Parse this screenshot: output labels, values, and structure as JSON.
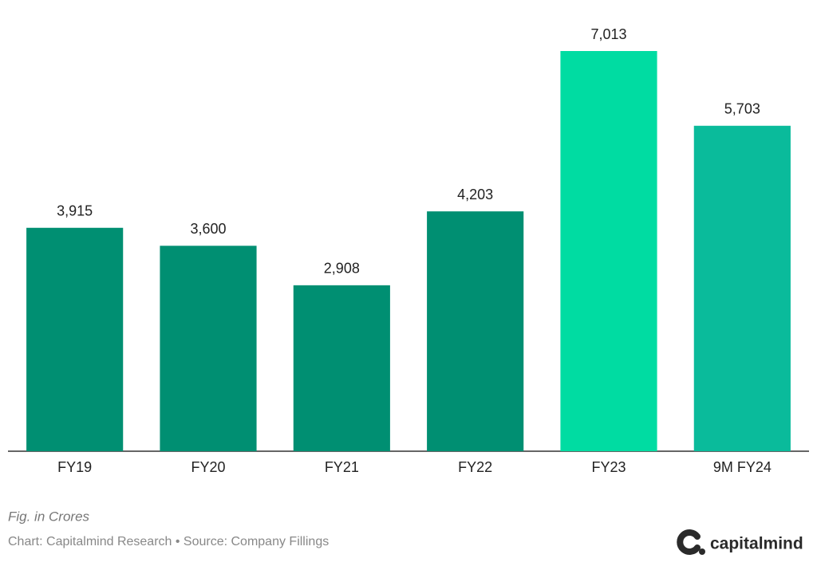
{
  "chart_data": {
    "type": "bar",
    "categories": [
      "FY19",
      "FY20",
      "FY21",
      "FY22",
      "FY23",
      "9M FY24"
    ],
    "values": [
      3915,
      3600,
      2908,
      4203,
      7013,
      5703
    ],
    "value_labels": [
      "3,915",
      "3,600",
      "2,908",
      "4,203",
      "7,013",
      "5,703"
    ],
    "colors": [
      "#008f72",
      "#008f72",
      "#008f72",
      "#008f72",
      "#00dca2",
      "#0abb9b"
    ],
    "notes": [
      "Fig. in Crores",
      "Chart: Capitalmind Research • Source: Company Fillings"
    ],
    "brand": "capitalmind"
  }
}
